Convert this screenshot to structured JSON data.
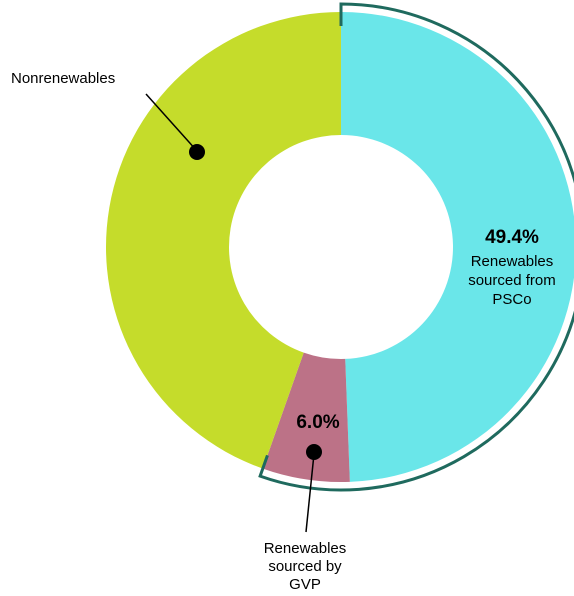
{
  "chart_data": {
    "type": "pie",
    "title": "",
    "donut": true,
    "slices": [
      {
        "label_lines": [
          "Renewables",
          "sourced from",
          "PSCo"
        ],
        "value": 49.4,
        "value_label": "49.4%",
        "color": "#6ae6e9"
      },
      {
        "label_lines": [
          "Renewables",
          "sourced by",
          "GVP"
        ],
        "value": 6.0,
        "value_label": "6.0%",
        "color": "#bc7287"
      },
      {
        "label_lines": [
          "Nonrenewables"
        ],
        "value": 44.6,
        "value_label": "",
        "color": "#c5dc2b"
      }
    ],
    "bracket_color": "#1f6a5e",
    "bracket_covers": "renewables"
  }
}
